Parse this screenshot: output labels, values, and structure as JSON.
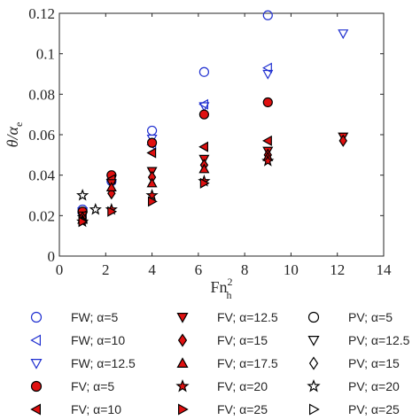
{
  "chart_data": {
    "type": "scatter",
    "title": "",
    "xlabel_main": "Fn",
    "xlabel_sup": "2",
    "xlabel_sub": "h",
    "ylabel_main": "θ/α",
    "ylabel_sub": "e",
    "xlim": [
      0,
      14
    ],
    "ylim": [
      0,
      0.12
    ],
    "xticks": [
      0,
      2,
      4,
      6,
      8,
      10,
      12,
      14
    ],
    "yticks": [
      0,
      0.02,
      0.04,
      0.06,
      0.08,
      0.1,
      0.12
    ],
    "xtick_labels": [
      "0",
      "2",
      "4",
      "6",
      "8",
      "10",
      "12",
      "14"
    ],
    "ytick_labels": [
      "0",
      "0.02",
      "0.04",
      "0.06",
      "0.08",
      "0.1",
      "0.12"
    ],
    "grid": false,
    "legend_position": "bottom",
    "colors": {
      "fw": "#1f2fd0",
      "fv": "#e01010",
      "pv": "#000000"
    },
    "series": [
      {
        "name": "FW; α=5",
        "marker": "circle",
        "fill": "none",
        "color": "#1f2fd0",
        "points": [
          [
            1.0,
            0.023
          ],
          [
            2.25,
            0.037
          ],
          [
            4.0,
            0.062
          ],
          [
            6.25,
            0.091
          ],
          [
            9.0,
            0.119
          ]
        ]
      },
      {
        "name": "FW; α=10",
        "marker": "tri-left",
        "fill": "none",
        "color": "#1f2fd0",
        "points": [
          [
            1.0,
            0.021
          ],
          [
            2.25,
            0.038
          ],
          [
            4.0,
            0.055
          ],
          [
            6.25,
            0.075
          ],
          [
            9.0,
            0.093
          ]
        ]
      },
      {
        "name": "FW; α=12.5",
        "marker": "tri-down",
        "fill": "none",
        "color": "#1f2fd0",
        "points": [
          [
            1.0,
            0.022
          ],
          [
            2.25,
            0.038
          ],
          [
            4.0,
            0.058
          ],
          [
            6.25,
            0.074
          ],
          [
            9.0,
            0.09
          ],
          [
            12.25,
            0.11
          ]
        ]
      },
      {
        "name": "FV; α=5",
        "marker": "circle",
        "fill": "#e01010",
        "color": "#e01010",
        "points": [
          [
            1.0,
            0.022
          ],
          [
            2.25,
            0.04
          ],
          [
            4.0,
            0.056
          ],
          [
            6.25,
            0.07
          ],
          [
            9.0,
            0.076
          ]
        ]
      },
      {
        "name": "FV; α=10",
        "marker": "tri-left",
        "fill": "#e01010",
        "color": "#e01010",
        "points": [
          [
            1.0,
            0.02
          ],
          [
            2.25,
            0.038
          ],
          [
            4.0,
            0.051
          ],
          [
            6.25,
            0.054
          ],
          [
            9.0,
            0.057
          ]
        ]
      },
      {
        "name": "FV; α=12.5",
        "marker": "tri-down",
        "fill": "#e01010",
        "color": "#e01010",
        "points": [
          [
            1.0,
            0.02
          ],
          [
            2.25,
            0.036
          ],
          [
            4.0,
            0.042
          ],
          [
            6.25,
            0.048
          ],
          [
            9.0,
            0.052
          ],
          [
            12.25,
            0.059
          ]
        ]
      },
      {
        "name": "FV; α=15",
        "marker": "diamond",
        "fill": "#e01010",
        "color": "#e01010",
        "points": [
          [
            1.0,
            0.019
          ],
          [
            2.25,
            0.031
          ],
          [
            4.0,
            0.039
          ],
          [
            6.25,
            0.045
          ],
          [
            9.0,
            0.05
          ],
          [
            12.25,
            0.057
          ]
        ]
      },
      {
        "name": "FV; α=17.5",
        "marker": "tri-up",
        "fill": "#e01010",
        "color": "#e01010",
        "points": [
          [
            1.0,
            0.018
          ],
          [
            2.25,
            0.034
          ],
          [
            4.0,
            0.036
          ],
          [
            6.25,
            0.043
          ],
          [
            9.0,
            0.049
          ]
        ]
      },
      {
        "name": "FV; α=20",
        "marker": "star",
        "fill": "#e01010",
        "color": "#e01010",
        "points": [
          [
            1.0,
            0.017
          ],
          [
            2.25,
            0.023
          ],
          [
            4.0,
            0.03
          ],
          [
            6.25,
            0.037
          ],
          [
            9.0,
            0.047
          ]
        ]
      },
      {
        "name": "FV; α=25",
        "marker": "tri-right",
        "fill": "#e01010",
        "color": "#e01010",
        "points": [
          [
            1.0,
            0.017
          ],
          [
            2.25,
            0.022
          ],
          [
            4.0,
            0.027
          ],
          [
            6.25,
            0.036
          ]
        ]
      },
      {
        "name": "PV; α=5",
        "marker": "circle",
        "fill": "none",
        "color": "#000000",
        "points": []
      },
      {
        "name": "PV; α=12.5",
        "marker": "tri-down",
        "fill": "none",
        "color": "#000000",
        "points": []
      },
      {
        "name": "PV; α=15",
        "marker": "diamond",
        "fill": "none",
        "color": "#000000",
        "points": []
      },
      {
        "name": "PV; α=20",
        "marker": "star",
        "fill": "none",
        "color": "#000000",
        "points": [
          [
            1.0,
            0.03
          ],
          [
            1.56,
            0.023
          ]
        ]
      },
      {
        "name": "PV; α=25",
        "marker": "tri-right",
        "fill": "none",
        "color": "#000000",
        "points": []
      }
    ],
    "legend_order": [
      "FW; α=5",
      "FV; α=12.5",
      "PV; α=5",
      "FW; α=10",
      "FV; α=15",
      "PV; α=12.5",
      "FW; α=12.5",
      "FV; α=17.5",
      "PV; α=15",
      "FV; α=5",
      "FV; α=20",
      "PV; α=20",
      "FV; α=10",
      "FV; α=25",
      "PV; α=25"
    ]
  }
}
